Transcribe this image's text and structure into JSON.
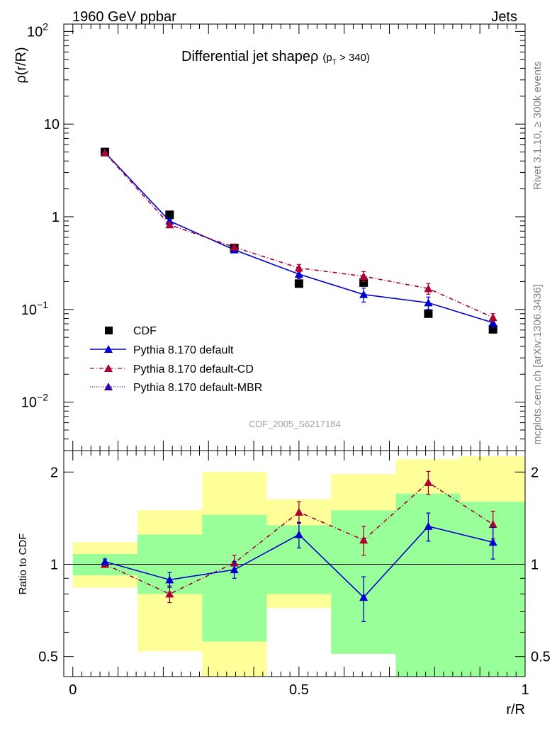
{
  "header": {
    "left": "1960 GeV ppbar",
    "right": "Jets"
  },
  "side_labels": {
    "top": "Rivet 3.1.10, ≥ 300k events",
    "bottom": "mcplots.cern.ch [arXiv:1306.3436]"
  },
  "colors": {
    "cdf": "#000000",
    "default": "#0000cc",
    "cd": "#aa0033",
    "mbr": "#3300aa",
    "band_outer": "#ffff99",
    "band_inner": "#99ff99"
  },
  "chart_data": [
    {
      "type": "scatter",
      "title": "Differential jet shapeρ",
      "title_sub": "(p",
      "title_sub_index": "T",
      "title_sub_tail": " > 340)",
      "ylabel": "ρ(r/R)",
      "yscale": "log",
      "ylim": [
        0.003,
        120
      ],
      "xlim": [
        -0.02,
        1.0
      ],
      "yticks": [
        {
          "value": 100,
          "base": "10",
          "exp": "2"
        },
        {
          "value": 10,
          "base": "10",
          "exp": ""
        },
        {
          "value": 1,
          "base": "1",
          "exp": ""
        },
        {
          "value": 0.1,
          "base": "10",
          "exp": "−1"
        },
        {
          "value": 0.01,
          "base": "10",
          "exp": "−2"
        }
      ],
      "watermark": "CDF_2005_S6217184",
      "x": [
        0.071,
        0.214,
        0.357,
        0.5,
        0.643,
        0.786,
        0.929
      ],
      "series": [
        {
          "name": "CDF",
          "style": "data",
          "values": [
            5.0,
            1.05,
            0.46,
            0.19,
            0.195,
            0.09,
            0.061
          ],
          "err": [
            0,
            0,
            0,
            0,
            0,
            0,
            0
          ]
        },
        {
          "name": "Pythia 8.170 default",
          "style": "solid",
          "values": [
            4.95,
            0.9,
            0.44,
            0.24,
            0.145,
            0.118,
            0.072
          ],
          "err": [
            0.1,
            0.04,
            0.03,
            0.025,
            0.025,
            0.018,
            0.008
          ]
        },
        {
          "name": "Pythia 8.170 default-CD",
          "style": "dashdot",
          "values": [
            4.9,
            0.82,
            0.47,
            0.28,
            0.228,
            0.168,
            0.082
          ],
          "err": [
            0.1,
            0.04,
            0.03,
            0.025,
            0.028,
            0.022,
            0.008
          ]
        },
        {
          "name": "Pythia 8.170 default-MBR",
          "style": "dotted",
          "values": [],
          "err": []
        }
      ]
    },
    {
      "type": "scatter",
      "ylabel": "Ratio to CDF",
      "xlabel": "r/R",
      "yscale": "log",
      "ylim": [
        0.43,
        2.35
      ],
      "xlim": [
        -0.02,
        1.0
      ],
      "yticks": [
        0.5,
        1,
        2
      ],
      "ytick_labels": [
        "0.5",
        "1",
        "2"
      ],
      "xticks": [
        0,
        0.5,
        1
      ],
      "xtick_labels": [
        "0",
        "0.5",
        "1"
      ],
      "bands": [
        {
          "x0": 0.0,
          "x1": 0.143,
          "outer": [
            0.84,
            1.18
          ],
          "inner": [
            0.92,
            1.08
          ]
        },
        {
          "x0": 0.143,
          "x1": 0.286,
          "outer": [
            0.52,
            1.5
          ],
          "inner": [
            0.8,
            1.25
          ]
        },
        {
          "x0": 0.286,
          "x1": 0.429,
          "outer": [
            0.3,
            2.0
          ],
          "inner": [
            0.56,
            1.45
          ]
        },
        {
          "x0": 0.429,
          "x1": 0.571,
          "outer": [
            0.72,
            1.63
          ],
          "inner": [
            0.8,
            1.34
          ]
        },
        {
          "x0": 0.571,
          "x1": 0.714,
          "outer": [
            0.51,
            1.97
          ],
          "inner": [
            0.51,
            1.5
          ]
        },
        {
          "x0": 0.714,
          "x1": 0.857,
          "outer": [
            0.38,
            2.2
          ],
          "inner": [
            0.38,
            1.7
          ]
        },
        {
          "x0": 0.857,
          "x1": 1.0,
          "outer": [
            0.3,
            2.25
          ],
          "inner": [
            0.36,
            1.6
          ]
        }
      ],
      "series": [
        {
          "name": "Pythia 8.170 default",
          "values": [
            1.02,
            0.89,
            0.96,
            1.25,
            0.78,
            1.33,
            1.18
          ],
          "err": [
            0.02,
            0.05,
            0.06,
            0.12,
            0.13,
            0.14,
            0.14
          ]
        },
        {
          "name": "Pythia 8.170 default-CD",
          "values": [
            1.0,
            0.8,
            1.01,
            1.48,
            1.2,
            1.85,
            1.35
          ],
          "err": [
            0.02,
            0.05,
            0.06,
            0.12,
            0.13,
            0.16,
            0.14
          ]
        }
      ]
    }
  ]
}
